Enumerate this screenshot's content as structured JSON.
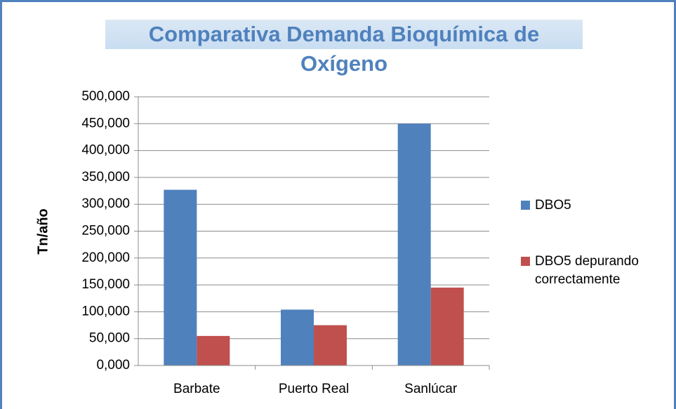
{
  "chart_data": {
    "type": "bar",
    "title": "Comparativa Demanda Bioquímica de Oxígeno",
    "y_label": "Tn/año",
    "categories": [
      "Barbate",
      "Puerto Real",
      "Sanlúcar"
    ],
    "series": [
      {
        "name": "DBO5",
        "color": "#4f81bd",
        "values": [
          327,
          104,
          450
        ]
      },
      {
        "name": "DBO5 depurando correctamente",
        "color": "#c0504d",
        "values": [
          55,
          75,
          145
        ]
      }
    ],
    "ylim": [
      0,
      500
    ],
    "yticks": [
      {
        "value": 0,
        "label": "0,000"
      },
      {
        "value": 50,
        "label": "50,000"
      },
      {
        "value": 100,
        "label": "100,000"
      },
      {
        "value": 150,
        "label": "150,000"
      },
      {
        "value": 200,
        "label": "200,000"
      },
      {
        "value": 250,
        "label": "250,000"
      },
      {
        "value": 300,
        "label": "300,000"
      },
      {
        "value": 350,
        "label": "350,000"
      },
      {
        "value": 400,
        "label": "400,000"
      },
      {
        "value": 450,
        "label": "450,000"
      },
      {
        "value": 500,
        "label": "500,000"
      }
    ],
    "grid": true,
    "legend": "right"
  }
}
